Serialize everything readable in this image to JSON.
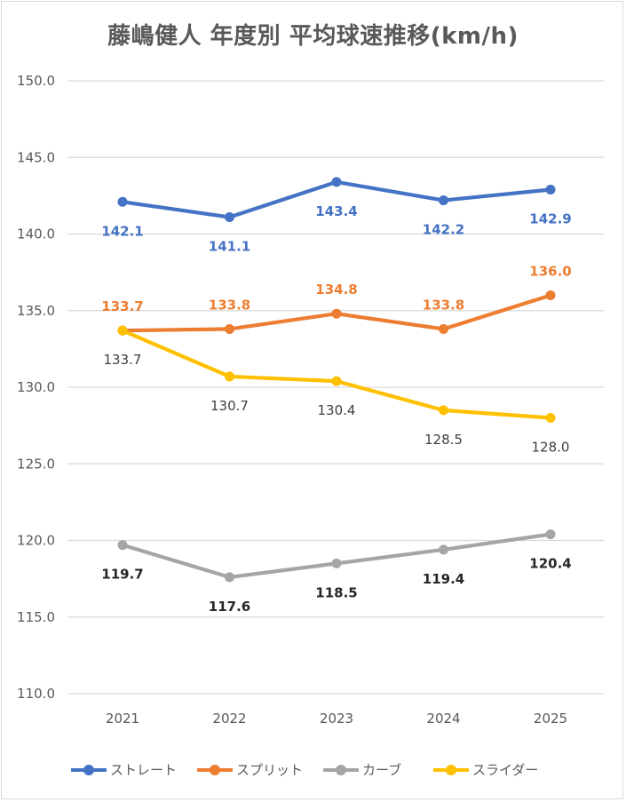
{
  "chart_data": {
    "type": "line",
    "title": "藤嶋健人 年度別 平均球速推移(km/h)",
    "categories": [
      "2021",
      "2022",
      "2023",
      "2024",
      "2025"
    ],
    "ylim": [
      110.0,
      150.0
    ],
    "yticks": [
      "110.0",
      "115.0",
      "120.0",
      "125.0",
      "130.0",
      "135.0",
      "140.0",
      "145.0",
      "150.0"
    ],
    "grid": true,
    "legend_position": "bottom",
    "series": [
      {
        "name": "ストレート",
        "color": "#4472c4",
        "label_color": "#4472c4",
        "label_pos": "below",
        "values": [
          142.1,
          141.1,
          143.4,
          142.2,
          142.9
        ],
        "labels": [
          "142.1",
          "141.1",
          "143.4",
          "142.2",
          "142.9"
        ]
      },
      {
        "name": "スプリット",
        "color": "#ed7d31",
        "label_color": "#ed7d31",
        "label_pos": "above",
        "values": [
          133.7,
          133.8,
          134.8,
          133.8,
          136.0
        ],
        "labels": [
          "133.7",
          "133.8",
          "134.8",
          "133.8",
          "136.0"
        ]
      },
      {
        "name": "カーブ",
        "color": "#a5a5a5",
        "label_color": "#262626",
        "label_pos": "below",
        "values": [
          119.7,
          117.6,
          118.5,
          119.4,
          120.4
        ],
        "labels": [
          "119.7",
          "117.6",
          "118.5",
          "119.4",
          "120.4"
        ]
      },
      {
        "name": "スライダー",
        "color": "#ffc000",
        "label_color": "#404040",
        "label_pos": "below",
        "values": [
          133.7,
          130.7,
          130.4,
          128.5,
          128.0
        ],
        "labels": [
          "133.7",
          "130.7",
          "130.4",
          "128.5",
          "128.0"
        ]
      }
    ]
  }
}
